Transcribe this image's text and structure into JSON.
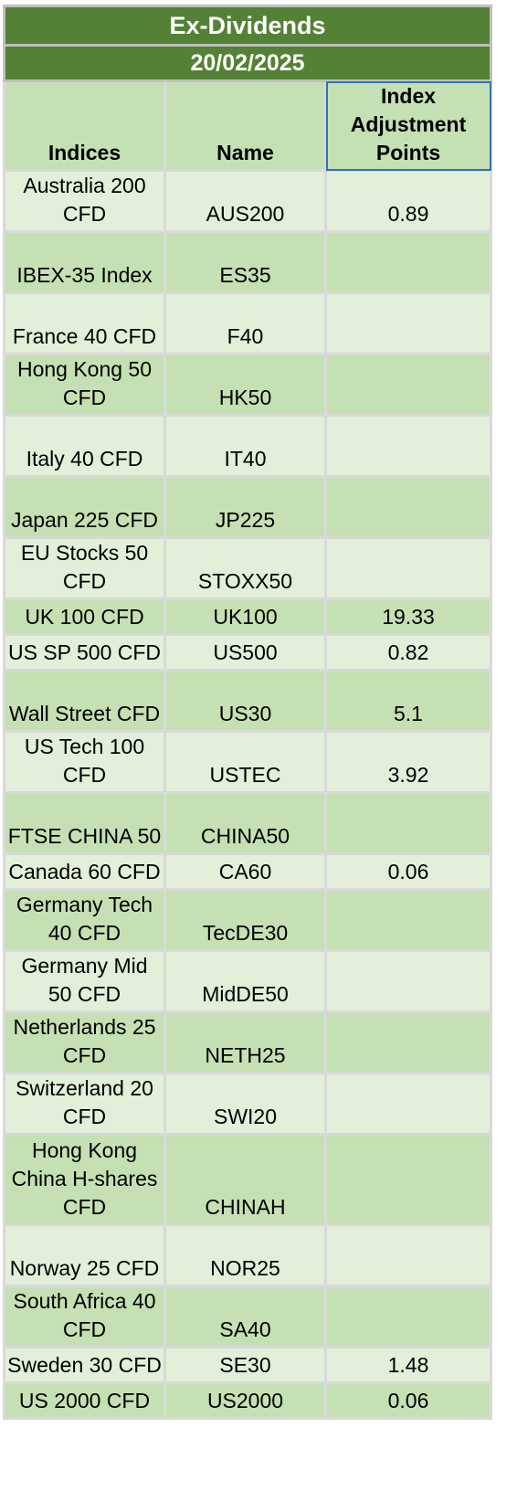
{
  "title": "Ex-Dividends",
  "date": "20/02/2025",
  "headers": {
    "indices": "Indices",
    "name": "Name",
    "adjustment": "Index Adjustment Points"
  },
  "rows": [
    {
      "index": "Australia 200 CFD",
      "name": "AUS200",
      "points": "0.89"
    },
    {
      "index": "IBEX-35 Index",
      "name": "ES35",
      "points": ""
    },
    {
      "index": "France 40 CFD",
      "name": "F40",
      "points": ""
    },
    {
      "index": "Hong Kong 50 CFD",
      "name": "HK50",
      "points": ""
    },
    {
      "index": "Italy 40 CFD",
      "name": "IT40",
      "points": ""
    },
    {
      "index": "Japan 225 CFD",
      "name": "JP225",
      "points": ""
    },
    {
      "index": "EU Stocks 50 CFD",
      "name": "STOXX50",
      "points": ""
    },
    {
      "index": "UK 100 CFD",
      "name": "UK100",
      "points": "19.33"
    },
    {
      "index": "US SP 500 CFD",
      "name": "US500",
      "points": "0.82"
    },
    {
      "index": "Wall Street CFD",
      "name": "US30",
      "points": "5.1"
    },
    {
      "index": "US Tech 100 CFD",
      "name": "USTEC",
      "points": "3.92"
    },
    {
      "index": "FTSE CHINA 50",
      "name": "CHINA50",
      "points": ""
    },
    {
      "index": "Canada 60 CFD",
      "name": "CA60",
      "points": "0.06"
    },
    {
      "index": "Germany Tech 40 CFD",
      "name": "TecDE30",
      "points": ""
    },
    {
      "index": "Germany Mid 50 CFD",
      "name": "MidDE50",
      "points": ""
    },
    {
      "index": "Netherlands 25 CFD",
      "name": "NETH25",
      "points": ""
    },
    {
      "index": "Switzerland 20 CFD",
      "name": "SWI20",
      "points": ""
    },
    {
      "index": "Hong Kong China H-shares CFD",
      "name": "CHINAH",
      "points": ""
    },
    {
      "index": "Norway 25 CFD",
      "name": "NOR25",
      "points": ""
    },
    {
      "index": "South Africa 40 CFD",
      "name": "SA40",
      "points": ""
    },
    {
      "index": "Sweden 30 CFD",
      "name": "SE30",
      "points": "1.48"
    },
    {
      "index": "US 2000 CFD",
      "name": "US2000",
      "points": "0.06"
    }
  ]
}
